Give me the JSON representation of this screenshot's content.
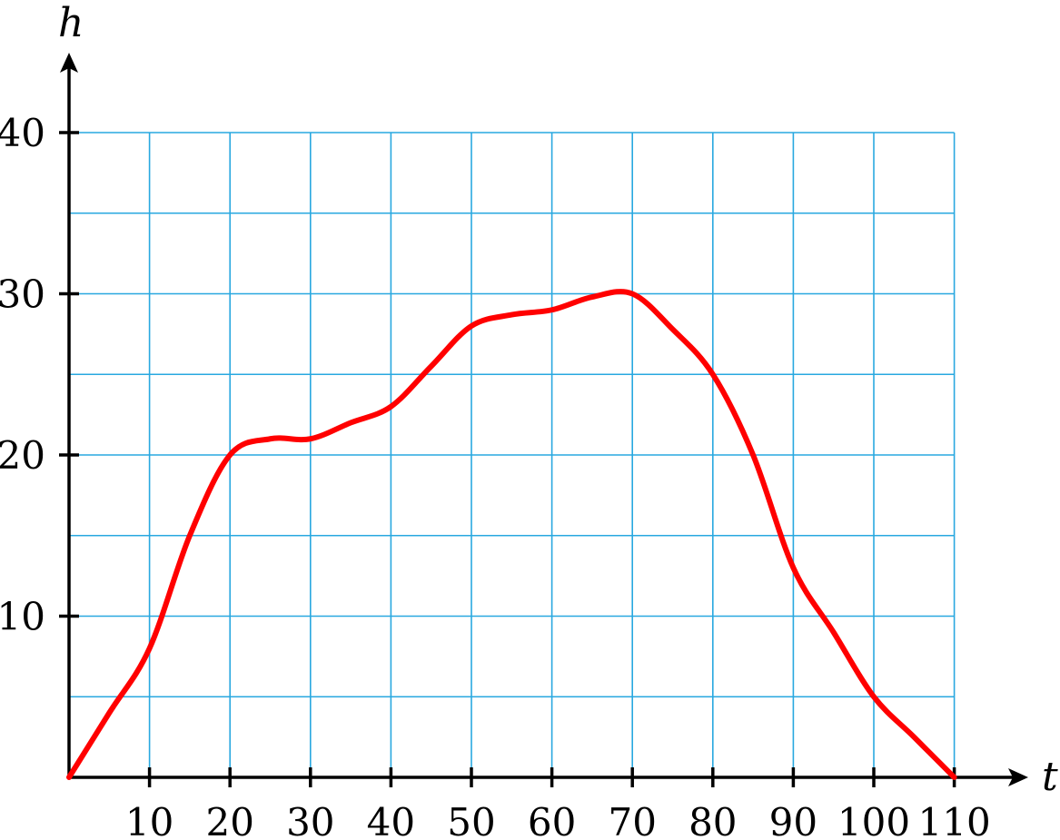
{
  "chart_data": {
    "type": "line",
    "title": "",
    "xlabel": "t",
    "ylabel": "h",
    "xlim": [
      0,
      110
    ],
    "ylim": [
      0,
      40
    ],
    "x_ticks": [
      10,
      20,
      30,
      40,
      50,
      60,
      70,
      80,
      90,
      100,
      110
    ],
    "y_ticks": [
      10,
      20,
      30,
      40
    ],
    "x_tick_labels": [
      "10",
      "20",
      "30",
      "40",
      "50",
      "60",
      "70",
      "80",
      "90",
      "100",
      "110"
    ],
    "y_tick_labels": [
      "10",
      "20",
      "30",
      "40"
    ],
    "grid": true,
    "grid_x_step": 10,
    "grid_y_step": 5,
    "series": [
      {
        "x": [
          0,
          5,
          10,
          15,
          20,
          25,
          30,
          35,
          40,
          45,
          50,
          55,
          60,
          65,
          70,
          75,
          80,
          85,
          90,
          95,
          100,
          105,
          110
        ],
        "y": [
          0,
          4,
          8,
          15,
          20,
          21,
          21,
          22,
          23,
          25.5,
          28,
          28.7,
          29,
          29.8,
          30,
          27.8,
          25,
          20,
          13,
          9,
          5,
          2.5,
          0
        ]
      }
    ]
  },
  "colors": {
    "grid": "#29a8e0",
    "line": "#ff0000",
    "axis": "#000000"
  }
}
